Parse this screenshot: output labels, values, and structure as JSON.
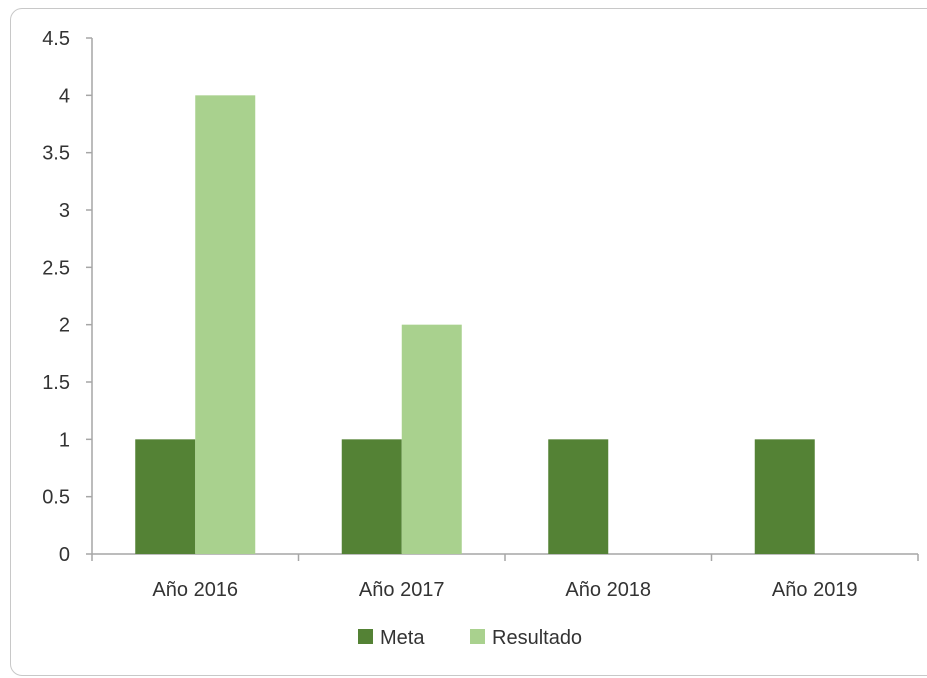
{
  "chart_data": {
    "type": "bar",
    "categories": [
      "Año 2016",
      "Año 2017",
      "Año 2018",
      "Año 2019"
    ],
    "series": [
      {
        "name": "Meta",
        "values": [
          1,
          1,
          1,
          1
        ],
        "color": "#548235"
      },
      {
        "name": "Resultado",
        "values": [
          4,
          2,
          null,
          null
        ],
        "color": "#a9d18e"
      }
    ],
    "title": "",
    "xlabel": "",
    "ylabel": "",
    "ylim": [
      0,
      4.5
    ],
    "yticks": [
      "0",
      "0.5",
      "1",
      "1.5",
      "2",
      "2.5",
      "3",
      "3.5",
      "4",
      "4.5"
    ],
    "grid": false,
    "legend": "bottom",
    "axis_color": "#a6a6a6"
  }
}
